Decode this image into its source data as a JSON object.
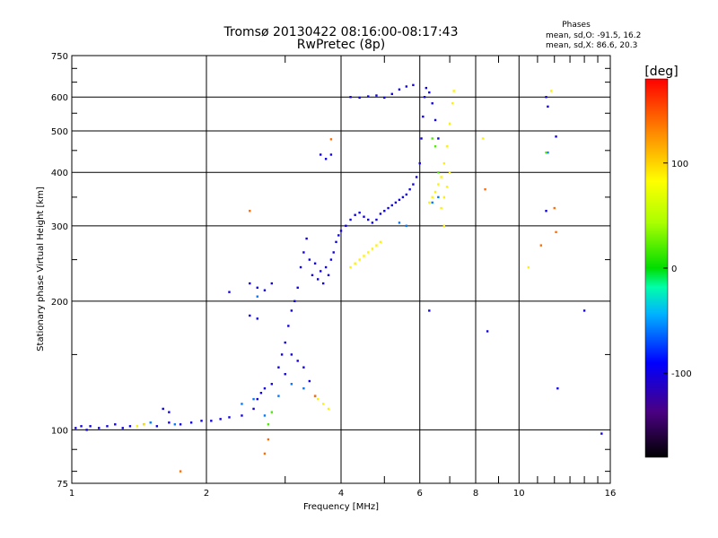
{
  "chart_data": {
    "type": "scatter",
    "title": "Tromsø 20130422 08:16:00-08:17:43",
    "subtitle": "RwPretec (8p)",
    "xlabel": "Frequency [MHz]",
    "ylabel": "Stationary phase Virtual Height [km]",
    "x_scale": "log",
    "y_scale": "log",
    "xlim": [
      1,
      16
    ],
    "ylim": [
      75,
      750
    ],
    "x_ticks": [
      1,
      2,
      4,
      6,
      8,
      10,
      16
    ],
    "x_tick_labels": [
      "1",
      "2",
      "4",
      "6",
      "8",
      "10",
      "16"
    ],
    "x_minor_ticks": [
      3,
      5,
      7,
      9,
      11,
      12,
      13,
      14,
      15
    ],
    "y_ticks": [
      75,
      100,
      200,
      300,
      400,
      500,
      600,
      750
    ],
    "y_tick_labels": [
      "75",
      "100",
      "200",
      "300",
      "400",
      "500",
      "600",
      "750"
    ],
    "grid": true,
    "phase_info": {
      "heading": "Phases",
      "line_o": "mean, sd,O: -91.5, 16.2",
      "line_x": "mean, sd,X:  86.6, 20.3"
    },
    "colorbar": {
      "label": "[deg]",
      "range": [
        -180,
        180
      ],
      "ticks": [
        100,
        0,
        -100
      ],
      "tick_labels": [
        "100",
        "0",
        "-100"
      ]
    },
    "series": [
      {
        "name": "o-mode",
        "phase_deg": -100,
        "points": [
          [
            1.02,
            101
          ],
          [
            1.05,
            102
          ],
          [
            1.08,
            100
          ],
          [
            1.1,
            102
          ],
          [
            1.15,
            101
          ],
          [
            1.2,
            102
          ],
          [
            1.25,
            103
          ],
          [
            1.3,
            101
          ],
          [
            1.35,
            102
          ],
          [
            1.45,
            103
          ],
          [
            1.55,
            102
          ],
          [
            1.65,
            104
          ],
          [
            1.75,
            103
          ],
          [
            1.85,
            104
          ],
          [
            1.95,
            105
          ],
          [
            2.05,
            105
          ],
          [
            2.15,
            106
          ],
          [
            2.25,
            107
          ],
          [
            2.4,
            108
          ],
          [
            2.55,
            112
          ],
          [
            2.6,
            118
          ],
          [
            2.65,
            122
          ],
          [
            2.7,
            125
          ],
          [
            2.8,
            128
          ],
          [
            2.9,
            140
          ],
          [
            2.95,
            150
          ],
          [
            3.0,
            160
          ],
          [
            3.05,
            175
          ],
          [
            3.1,
            190
          ],
          [
            3.15,
            200
          ],
          [
            3.2,
            215
          ],
          [
            3.25,
            240
          ],
          [
            3.3,
            260
          ],
          [
            3.35,
            280
          ],
          [
            3.4,
            250
          ],
          [
            3.45,
            230
          ],
          [
            3.5,
            245
          ],
          [
            3.55,
            225
          ],
          [
            3.6,
            235
          ],
          [
            3.65,
            220
          ],
          [
            3.7,
            240
          ],
          [
            3.75,
            230
          ],
          [
            3.8,
            250
          ],
          [
            3.85,
            260
          ],
          [
            3.9,
            275
          ],
          [
            3.95,
            285
          ],
          [
            4.0,
            292
          ],
          [
            4.1,
            300
          ],
          [
            4.2,
            310
          ],
          [
            4.3,
            318
          ],
          [
            4.4,
            322
          ],
          [
            4.5,
            315
          ],
          [
            4.6,
            310
          ],
          [
            4.7,
            305
          ],
          [
            4.8,
            310
          ],
          [
            4.9,
            320
          ],
          [
            5.0,
            325
          ],
          [
            5.1,
            330
          ],
          [
            5.2,
            335
          ],
          [
            5.3,
            340
          ],
          [
            5.4,
            345
          ],
          [
            5.5,
            350
          ],
          [
            5.6,
            355
          ],
          [
            5.7,
            365
          ],
          [
            5.8,
            375
          ],
          [
            5.9,
            390
          ],
          [
            6.0,
            420
          ],
          [
            6.05,
            480
          ],
          [
            6.1,
            540
          ],
          [
            6.15,
            600
          ],
          [
            6.2,
            630
          ],
          [
            6.3,
            615
          ],
          [
            6.4,
            580
          ],
          [
            6.5,
            530
          ],
          [
            6.6,
            480
          ],
          [
            4.2,
            600
          ],
          [
            4.4,
            598
          ],
          [
            4.6,
            602
          ],
          [
            4.8,
            605
          ],
          [
            5.0,
            598
          ],
          [
            5.2,
            610
          ],
          [
            5.4,
            625
          ],
          [
            5.6,
            635
          ],
          [
            5.8,
            640
          ],
          [
            2.5,
            220
          ],
          [
            2.6,
            215
          ],
          [
            2.7,
            212
          ],
          [
            2.8,
            220
          ],
          [
            2.5,
            185
          ],
          [
            2.6,
            182
          ],
          [
            3.6,
            440
          ],
          [
            3.7,
            430
          ],
          [
            3.8,
            440
          ],
          [
            3.1,
            150
          ],
          [
            3.2,
            145
          ],
          [
            3.3,
            140
          ],
          [
            3.0,
            135
          ],
          [
            3.4,
            130
          ],
          [
            6.3,
            190
          ],
          [
            8.5,
            170
          ],
          [
            12.2,
            125
          ],
          [
            14.0,
            190
          ],
          [
            11.5,
            325
          ],
          [
            11.5,
            600
          ],
          [
            11.6,
            570
          ],
          [
            12.1,
            485
          ],
          [
            15.3,
            98
          ],
          [
            2.25,
            210
          ],
          [
            1.6,
            112
          ],
          [
            1.65,
            110
          ]
        ]
      },
      {
        "name": "o-mode-cyan",
        "phase_deg": -60,
        "points": [
          [
            2.4,
            115
          ],
          [
            2.55,
            118
          ],
          [
            2.7,
            108
          ],
          [
            2.9,
            120
          ],
          [
            3.1,
            128
          ],
          [
            3.3,
            125
          ],
          [
            1.5,
            104
          ],
          [
            1.7,
            103
          ],
          [
            2.6,
            205
          ],
          [
            5.4,
            305
          ],
          [
            5.6,
            300
          ],
          [
            6.4,
            340
          ],
          [
            6.6,
            350
          ],
          [
            3.5,
            120
          ],
          [
            11.6,
            445
          ]
        ]
      },
      {
        "name": "x-mode",
        "phase_deg": 90,
        "points": [
          [
            4.2,
            240
          ],
          [
            4.3,
            245
          ],
          [
            4.4,
            250
          ],
          [
            4.5,
            255
          ],
          [
            4.6,
            260
          ],
          [
            4.7,
            265
          ],
          [
            4.8,
            270
          ],
          [
            4.9,
            275
          ],
          [
            6.3,
            340
          ],
          [
            6.4,
            350
          ],
          [
            6.5,
            360
          ],
          [
            6.6,
            375
          ],
          [
            6.7,
            390
          ],
          [
            6.8,
            420
          ],
          [
            6.9,
            460
          ],
          [
            7.0,
            520
          ],
          [
            7.1,
            580
          ],
          [
            7.15,
            620
          ],
          [
            6.7,
            330
          ],
          [
            6.8,
            350
          ],
          [
            6.9,
            370
          ],
          [
            7.0,
            400
          ],
          [
            3.55,
            118
          ],
          [
            3.65,
            115
          ],
          [
            3.75,
            112
          ],
          [
            1.4,
            102
          ],
          [
            1.45,
            103
          ],
          [
            8.3,
            480
          ],
          [
            10.5,
            240
          ],
          [
            11.8,
            620
          ],
          [
            6.8,
            300
          ]
        ]
      },
      {
        "name": "x-mode-orange",
        "phase_deg": 140,
        "points": [
          [
            2.5,
            325
          ],
          [
            2.75,
            95
          ],
          [
            2.7,
            88
          ],
          [
            3.8,
            478
          ],
          [
            8.4,
            365
          ],
          [
            11.2,
            270
          ],
          [
            12.0,
            330
          ],
          [
            12.1,
            290
          ],
          [
            1.75,
            80
          ],
          [
            3.5,
            120
          ]
        ]
      },
      {
        "name": "green",
        "phase_deg": 20,
        "points": [
          [
            2.75,
            103
          ],
          [
            2.8,
            110
          ],
          [
            6.4,
            480
          ],
          [
            6.5,
            460
          ],
          [
            11.5,
            445
          ],
          [
            6.6,
            400
          ]
        ]
      }
    ]
  }
}
